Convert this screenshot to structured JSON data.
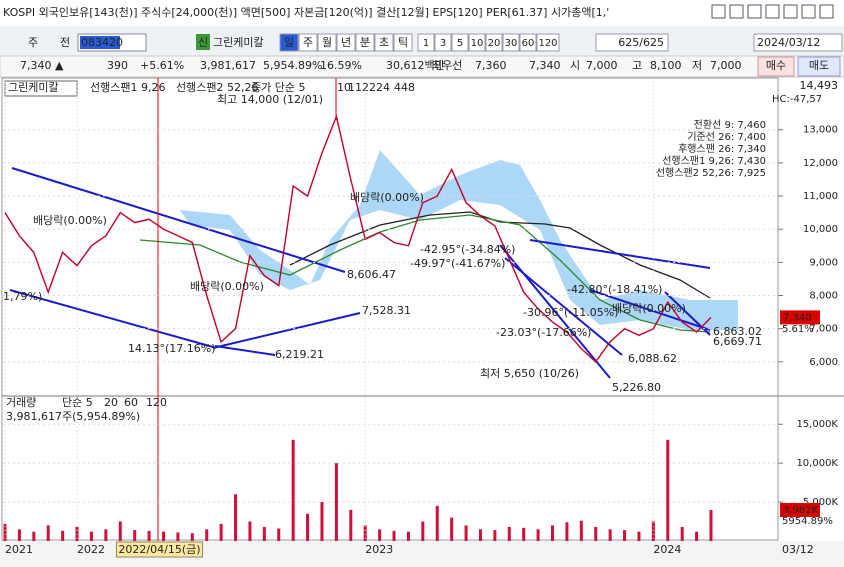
{
  "header": {
    "text": "KOSPI 외국인보유[143(천)] 주식수[24,000(천)] 액면[500] 자본금[120(억)] 결산[12월] EPS[120] PER[61.37] 시가총액[1,'"
  },
  "toolbar": {
    "market": "주",
    "prev": "전",
    "code": "083420",
    "sin": "신",
    "name": "그린케미칼",
    "periods": [
      "일",
      "주",
      "월",
      "년",
      "분",
      "초",
      "틱"
    ],
    "intervals": [
      "1",
      "3",
      "5",
      "10",
      "20",
      "30",
      "60",
      "120"
    ],
    "count": "625/625",
    "date": "2024/03/12"
  },
  "quote": {
    "price": "7,340 ▲",
    "change": "390",
    "rate": "+5.61%",
    "volume": "3,981,617",
    "vol_rate": "5,954.89%",
    "turnover": "16.59%",
    "amount": "30,612백만",
    "best": "최우선",
    "ask": "7,360",
    "bid": "7,340",
    "open_label": "시",
    "open": "7,000",
    "high_label": "고",
    "high": "8,100",
    "low_label": "저",
    "low": "7,000",
    "buy": "매수",
    "sell": "매도"
  },
  "chart_data": [
    {
      "type": "line",
      "color": "#c0002a",
      "legend": [
        "그린케미칼",
        "선행스팬1 9,26",
        "선행스팬2 52,26",
        "종가 단순 5",
        "10",
        "112",
        "224",
        "448"
      ],
      "values": [
        10500,
        9800,
        9300,
        8100,
        9300,
        8900,
        9500,
        9800,
        10500,
        10200,
        10300,
        10000,
        9800,
        9600,
        8000,
        6600,
        7000,
        9200,
        8600,
        8300,
        11300,
        11000,
        12300,
        13400,
        11500,
        9700,
        9900,
        9600,
        9500,
        10800,
        11000,
        11800,
        10800,
        10400,
        10100,
        9100,
        8100,
        7600,
        7200,
        6900,
        6400,
        6000,
        6600,
        7000,
        6800,
        7000,
        7800,
        7200,
        6900,
        7340
      ],
      "value_labels": [
        null,
        null,
        null,
        null,
        null,
        null,
        null,
        null,
        null,
        null,
        null,
        null,
        null,
        null,
        null,
        null,
        null,
        null,
        null,
        null,
        null,
        null,
        null,
        null,
        null,
        null,
        null,
        null,
        null,
        null,
        null,
        null,
        null,
        null,
        null,
        null,
        null,
        null,
        null,
        null,
        null,
        null,
        null,
        null,
        null,
        null,
        null,
        null,
        null,
        "7,340"
      ],
      "ylim": [
        5000,
        14500
      ],
      "yticks": [
        {
          "value": 6000,
          "label": "6,000"
        },
        {
          "value": 7000,
          "label": "7,000"
        },
        {
          "value": 8000,
          "label": "8,000"
        },
        {
          "value": 9000,
          "label": "9,000"
        },
        {
          "value": 10000,
          "label": "10,000"
        },
        {
          "value": 11000,
          "label": "11,000"
        },
        {
          "value": 12000,
          "label": "12,000"
        },
        {
          "value": 13000,
          "label": "13,000"
        }
      ],
      "axis_top": "14,493",
      "axis_note": "HC:-47,57",
      "change_label": "5.61%",
      "indicators": [
        "전환선 9: 7,460",
        "기준선 26: 7,400",
        "후행스팬 26: 7,340",
        "선행스팬1 9,26: 7,430",
        "선행스팬2 52,26: 7,925"
      ],
      "annotations": [
        "최고 14,000 (12/01)",
        "최저 5,650 (10/26)",
        "배당락(0.00%)",
        "배당락(0.00%)",
        "배당락(0.00%)",
        "배당락(0.00%)",
        "8,606.47",
        "7,528.31",
        "6,219.21",
        "5,226.80",
        "6,088.62",
        "6,863.02",
        "6,669.71",
        "-42.95°(-34.84%)",
        "-49.97°(-41.67%)",
        "-42.80°(-18.41%)",
        "-30.96°(-11.05%)",
        "-23.03°(-17.66%)",
        "14.13°(17.16%)",
        "1,79%)"
      ]
    },
    {
      "type": "bar",
      "color": "#d0103a",
      "legend": [
        "거래량",
        "단순 5",
        "20",
        "60",
        "120"
      ],
      "summary": "3,981,617주(5,954.89%)",
      "categories": [
        "2021",
        null,
        null,
        null,
        null,
        "2022",
        null,
        null,
        null,
        null,
        null,
        "2022/04/15(금)",
        null,
        null,
        null,
        null,
        null,
        null,
        null,
        null,
        null,
        null,
        null,
        null,
        null,
        "2023",
        null,
        null,
        null,
        null,
        null,
        null,
        null,
        null,
        null,
        null,
        null,
        null,
        null,
        null,
        null,
        null,
        null,
        null,
        null,
        "2024",
        null,
        null,
        null,
        "03/12"
      ],
      "values": [
        2200,
        1500,
        1200,
        2000,
        1300,
        1800,
        1200,
        1500,
        2500,
        1400,
        1300,
        1200,
        1100,
        1000,
        1500,
        2200,
        6000,
        2500,
        1800,
        1600,
        13000,
        3500,
        5000,
        10000,
        4000,
        2000,
        1500,
        1300,
        1200,
        2500,
        4500,
        3000,
        2000,
        1500,
        1400,
        1800,
        1700,
        1500,
        2000,
        2400,
        2600,
        1800,
        1500,
        1400,
        1200,
        2500,
        13000,
        1800,
        1200,
        3982
      ],
      "value_labels": [
        null,
        null,
        null,
        null,
        null,
        null,
        null,
        null,
        null,
        null,
        null,
        null,
        null,
        null,
        null,
        null,
        null,
        null,
        null,
        null,
        null,
        null,
        null,
        null,
        null,
        null,
        null,
        null,
        null,
        null,
        null,
        null,
        null,
        null,
        null,
        null,
        null,
        null,
        null,
        null,
        null,
        null,
        null,
        null,
        null,
        null,
        null,
        null,
        null,
        "3,982K"
      ],
      "rate_label": "5954.89%",
      "ylim": [
        0,
        18500
      ],
      "yticks": [
        {
          "value": 5000,
          "label": "5,000K"
        },
        {
          "value": 10000,
          "label": "10,000K"
        },
        {
          "value": 15000,
          "label": "15,000K"
        }
      ]
    }
  ]
}
